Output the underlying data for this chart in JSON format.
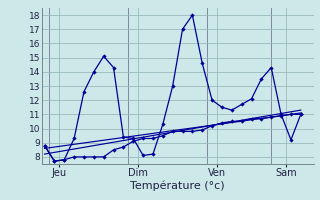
{
  "xlabel": "Température (°c)",
  "bg_color": "#cce8e8",
  "line_color": "#000099",
  "grid_color": "#99bbbb",
  "ylim": [
    7.5,
    18.5
  ],
  "xlim": [
    -0.3,
    27.3
  ],
  "yticks": [
    8,
    9,
    10,
    11,
    12,
    13,
    14,
    15,
    16,
    17,
    18
  ],
  "day_labels": [
    {
      "label": "Jeu",
      "x": 1.5
    },
    {
      "label": "Dim",
      "x": 9.5
    },
    {
      "label": "Ven",
      "x": 17.5
    },
    {
      "label": "Sam",
      "x": 24.5
    }
  ],
  "day_vlines": [
    0.5,
    8.5,
    16.5,
    23.0
  ],
  "series_max": {
    "x": [
      0,
      1,
      2,
      3,
      4,
      5,
      6,
      7,
      8,
      9,
      10,
      11,
      12,
      13,
      14,
      15,
      16,
      17,
      18,
      19,
      20,
      21,
      22,
      23,
      24,
      25,
      26
    ],
    "y": [
      8.8,
      7.7,
      7.8,
      9.3,
      12.6,
      14.0,
      15.1,
      14.3,
      9.4,
      9.3,
      8.1,
      8.2,
      10.3,
      13.0,
      17.0,
      18.0,
      14.6,
      12.0,
      11.5,
      11.3,
      11.7,
      12.1,
      13.5,
      14.3,
      11.0,
      9.2,
      11.0
    ]
  },
  "series_min": {
    "x": [
      0,
      1,
      2,
      3,
      4,
      5,
      6,
      7,
      8,
      9,
      10,
      11,
      12,
      13,
      14,
      15,
      16,
      17,
      18,
      19,
      20,
      21,
      22,
      23,
      24,
      25,
      26
    ],
    "y": [
      8.8,
      7.7,
      7.8,
      8.0,
      8.0,
      8.0,
      8.0,
      8.5,
      8.7,
      9.1,
      9.3,
      9.3,
      9.5,
      9.8,
      9.8,
      9.8,
      9.9,
      10.2,
      10.4,
      10.5,
      10.5,
      10.7,
      10.7,
      10.8,
      10.9,
      11.0,
      11.0
    ]
  },
  "series_trend1": {
    "x": [
      0,
      26
    ],
    "y": [
      8.2,
      11.3
    ]
  },
  "series_trend2": {
    "x": [
      0,
      26
    ],
    "y": [
      8.6,
      11.1
    ]
  },
  "ytick_fontsize": 6.5,
  "xtick_fontsize": 7,
  "xlabel_fontsize": 8
}
